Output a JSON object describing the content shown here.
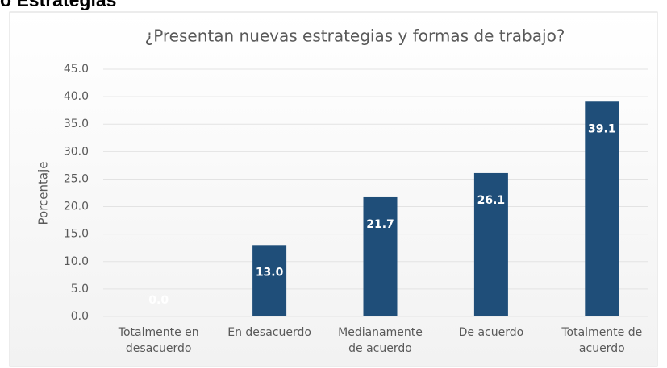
{
  "header": "o Estrategias",
  "chart_data": {
    "type": "bar",
    "title": "¿Presentan nuevas estrategias y formas de trabajo?",
    "y_label": "Porcentaje",
    "categories": [
      "Totalmente en\ndesacuerdo",
      "En desacuerdo",
      "Medianamente\nde acuerdo",
      "De acuerdo",
      "Totalmente de\nacuerdo"
    ],
    "values": [
      0,
      13,
      21.7,
      26.1,
      39.1
    ],
    "value_labels": [
      "0.0",
      "13.0",
      "21.7",
      "26.1",
      "39.1"
    ],
    "color": "#1f4e79",
    "ylim": [
      0,
      45
    ],
    "yticks": [
      {
        "value": 0,
        "label": "0.0"
      },
      {
        "value": 5,
        "label": "5.0"
      },
      {
        "value": 10,
        "label": "10.0"
      },
      {
        "value": 15,
        "label": "15.0"
      },
      {
        "value": 20,
        "label": "20.0"
      },
      {
        "value": 25,
        "label": "25.0"
      },
      {
        "value": 30,
        "label": "30.0"
      },
      {
        "value": 35,
        "label": "35.0"
      },
      {
        "value": 40,
        "label": "40.0"
      },
      {
        "value": 45,
        "label": "45.0"
      }
    ],
    "grid": true
  }
}
